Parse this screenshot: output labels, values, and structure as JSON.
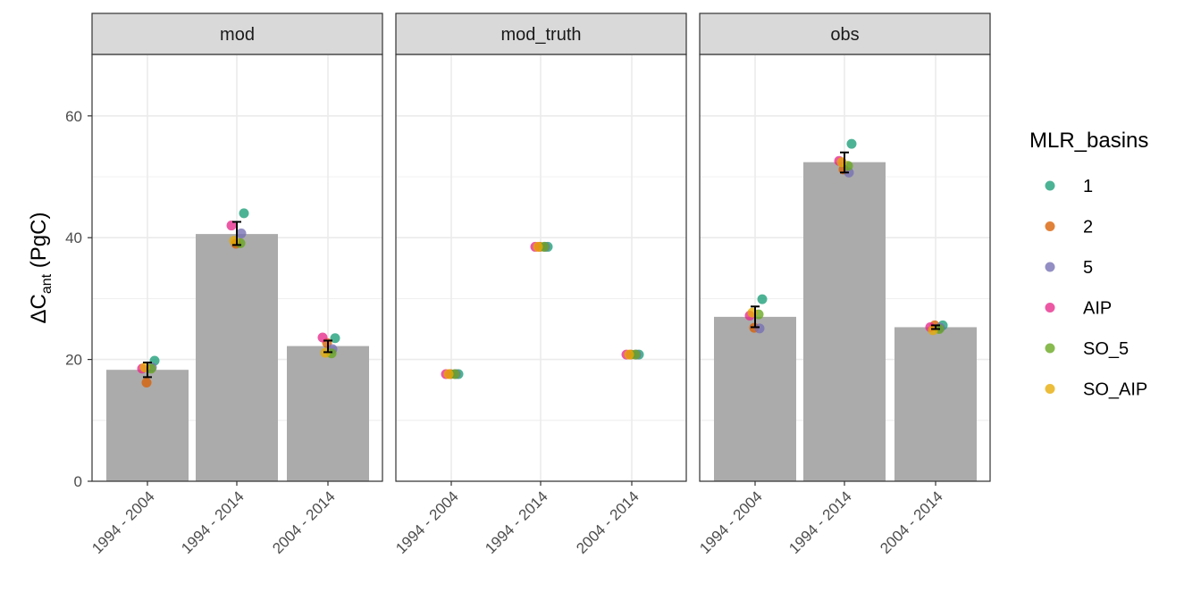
{
  "chart_data": {
    "type": "bar",
    "facets": [
      "mod",
      "mod_truth",
      "obs"
    ],
    "categories": [
      "1994 - 2004",
      "1994 - 2014",
      "2004 - 2014"
    ],
    "ylabel": {
      "main": "ΔC",
      "sub": "ant",
      "unit": " (PgC)"
    },
    "xlabel": "",
    "ylim": [
      0,
      70
    ],
    "yticks": [
      0,
      20,
      40,
      60
    ],
    "grid": true,
    "legend": {
      "title": "MLR_basins",
      "position": "right"
    },
    "bars": {
      "mod": [
        18.3,
        40.6,
        22.2
      ],
      "mod_truth": [
        null,
        null,
        null
      ],
      "obs": [
        27.0,
        52.4,
        25.3
      ]
    },
    "error_bars": {
      "mod": [
        [
          17.1,
          19.5
        ],
        [
          38.8,
          42.6
        ],
        [
          21.2,
          23.1
        ]
      ],
      "mod_truth": [
        null,
        null,
        null
      ],
      "obs": [
        [
          25.3,
          28.7
        ],
        [
          50.7,
          54.0
        ],
        [
          25.0,
          25.6
        ]
      ]
    },
    "series": [
      {
        "name": "1",
        "color": "#1B9E77",
        "values": {
          "mod": [
            19.8,
            44.0,
            23.5
          ],
          "mod_truth": [
            17.6,
            38.5,
            20.8
          ],
          "obs": [
            29.9,
            55.4,
            25.6
          ]
        }
      },
      {
        "name": "2",
        "color": "#D95F02",
        "values": {
          "mod": [
            16.2,
            39.0,
            22.7
          ],
          "mod_truth": [
            17.6,
            38.5,
            20.8
          ],
          "obs": [
            25.2,
            51.2,
            25.6
          ]
        }
      },
      {
        "name": "5",
        "color": "#7570B3",
        "values": {
          "mod": [
            18.7,
            40.7,
            21.7
          ],
          "mod_truth": [
            17.6,
            38.5,
            20.8
          ],
          "obs": [
            25.1,
            50.7,
            25.2
          ]
        }
      },
      {
        "name": "AIP",
        "color": "#E7298A",
        "values": {
          "mod": [
            18.5,
            42.0,
            23.6
          ],
          "mod_truth": [
            17.6,
            38.5,
            20.8
          ],
          "obs": [
            27.2,
            52.6,
            25.3
          ]
        }
      },
      {
        "name": "SO_5",
        "color": "#66A61E",
        "values": {
          "mod": [
            18.5,
            39.1,
            21.0
          ],
          "mod_truth": [
            17.6,
            38.5,
            20.8
          ],
          "obs": [
            27.4,
            51.8,
            25.0
          ]
        }
      },
      {
        "name": "SO_AIP",
        "color": "#E6AB02",
        "values": {
          "mod": [
            18.7,
            39.5,
            21.1
          ],
          "mod_truth": [
            17.6,
            38.5,
            20.8
          ],
          "obs": [
            27.7,
            52.4,
            24.8
          ]
        }
      }
    ]
  },
  "colors": {
    "bar_fill": "#ABABAB",
    "strip_fill": "#D9D9D9",
    "grid": "#EBEBEB",
    "panel_border": "#333333"
  }
}
